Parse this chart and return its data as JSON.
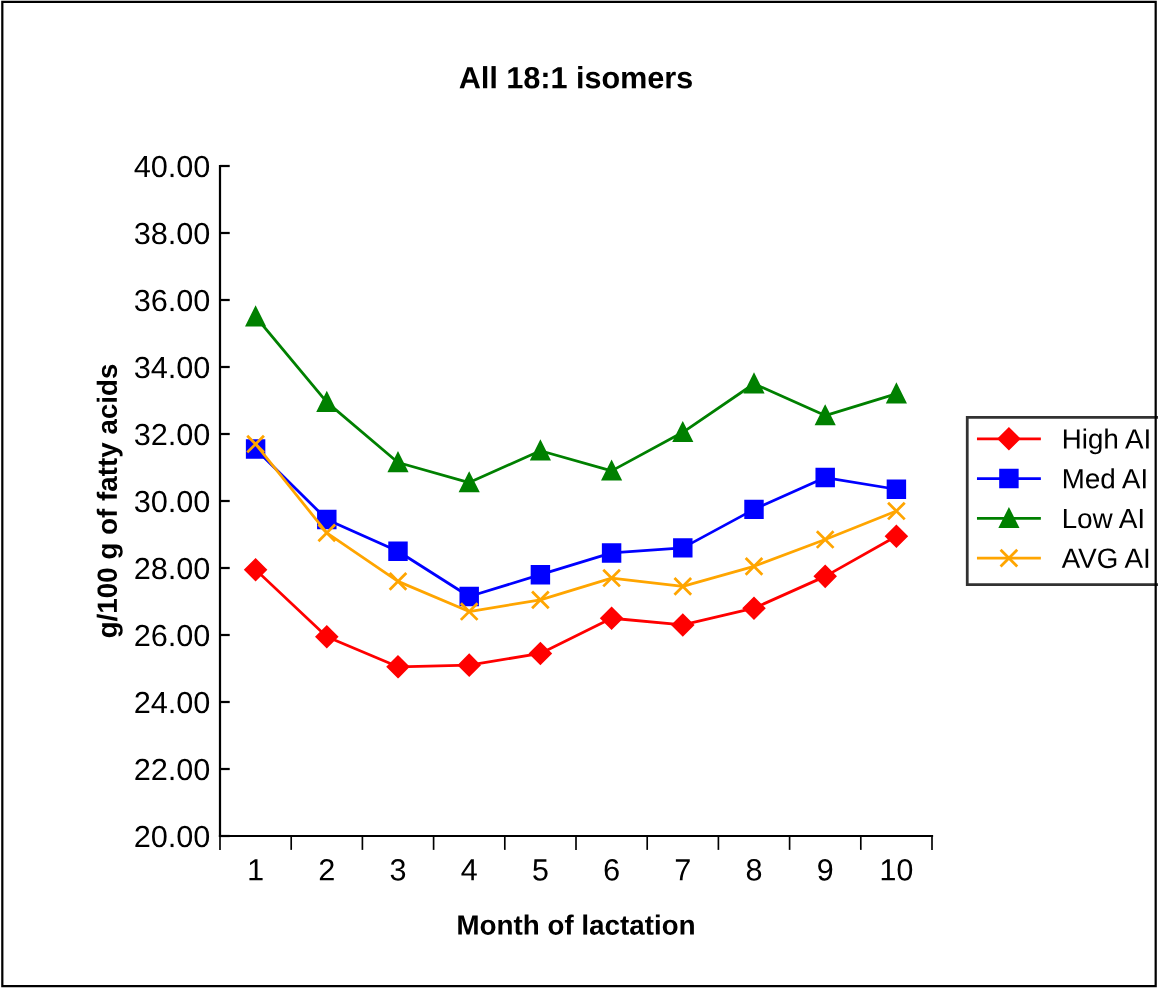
{
  "chart_data": {
    "type": "line",
    "title": "All 18:1 isomers",
    "xlabel": "Month of lactation",
    "ylabel": "g/100 g of fatty acids",
    "categories": [
      "1",
      "2",
      "3",
      "4",
      "5",
      "6",
      "7",
      "8",
      "9",
      "10"
    ],
    "series": [
      {
        "name": "High AI",
        "color": "#ff0000",
        "marker": "diamond",
        "values": [
          27.95,
          25.95,
          25.05,
          25.1,
          25.45,
          26.5,
          26.3,
          26.8,
          27.75,
          28.95
        ]
      },
      {
        "name": "Med AI",
        "color": "#0000ff",
        "marker": "square",
        "values": [
          31.55,
          29.45,
          28.5,
          27.15,
          27.8,
          28.45,
          28.6,
          29.75,
          30.7,
          30.35
        ]
      },
      {
        "name": "Low AI",
        "color": "#008000",
        "marker": "triangle",
        "values": [
          35.5,
          32.95,
          31.15,
          30.55,
          31.5,
          30.9,
          32.05,
          33.5,
          32.55,
          33.2
        ]
      },
      {
        "name": "AVG AI",
        "color": "#ffa500",
        "marker": "cross",
        "values": [
          31.7,
          29.05,
          27.6,
          26.7,
          27.05,
          27.7,
          27.45,
          28.05,
          28.85,
          29.7
        ]
      }
    ],
    "ylim": [
      20,
      40
    ],
    "yticks": [
      {
        "value": 20,
        "label": "20.00"
      },
      {
        "value": 22,
        "label": "22.00"
      },
      {
        "value": 24,
        "label": "24.00"
      },
      {
        "value": 26,
        "label": "26.00"
      },
      {
        "value": 28,
        "label": "28.00"
      },
      {
        "value": 30,
        "label": "30.00"
      },
      {
        "value": 32,
        "label": "32.00"
      },
      {
        "value": 34,
        "label": "34.00"
      },
      {
        "value": 36,
        "label": "36.00"
      },
      {
        "value": 38,
        "label": "38.00"
      },
      {
        "value": 40,
        "label": "40.00"
      }
    ],
    "grid": false,
    "legend": "right",
    "line_style": "solid"
  }
}
